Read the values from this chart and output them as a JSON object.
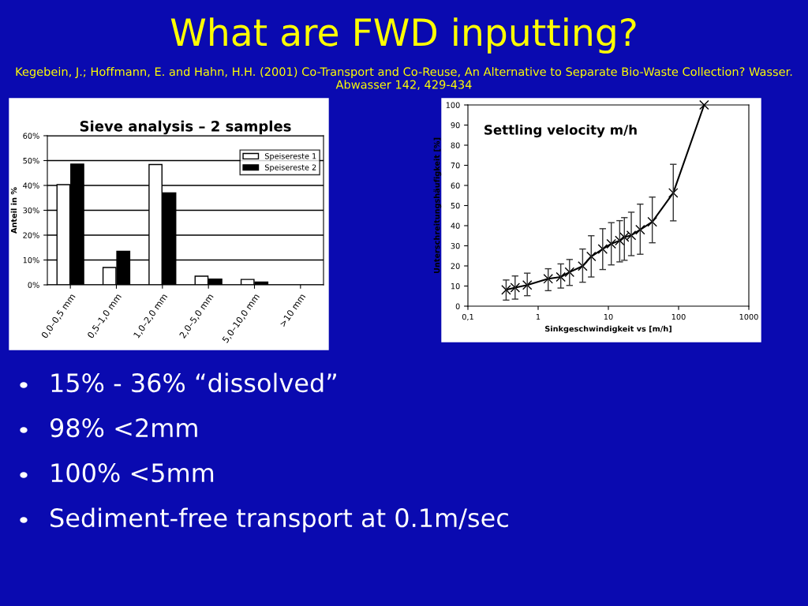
{
  "chart_data": [
    {
      "type": "other",
      "title": "What are FWD inputting?",
      "subtitle": "Kegebein, J.; Hoffmann, E. and Hahn, H.H. (2001) Co-Transport and Co-Reuse, An Alternative to Separate Bio-Waste Collection? Wasser. Abwasser 142, 429-434",
      "annotations": [
        "15% - 36% “dissolved”",
        "98% <2mm",
        "100% <5mm",
        "Sediment-free transport at 0.1m/sec"
      ]
    },
    {
      "type": "bar",
      "title": "Sieve analysis – 2 samples",
      "ylabel": "Anteil in %",
      "categories": [
        "0,0–0,5 mm",
        "0,5–1,0 mm",
        "1,0–2,0 mm",
        "2,0–5,0 mm",
        "5,0–10,0 mm",
        ">10 mm"
      ],
      "series": [
        {
          "name": "Speisereste 1",
          "color": "#ffffff",
          "values": [
            40.3,
            7.0,
            48.4,
            3.5,
            2.2,
            null
          ]
        },
        {
          "name": "Speisereste 2",
          "color": "#000000",
          "values": [
            48.6,
            13.5,
            37.0,
            2.3,
            1.1,
            null
          ]
        }
      ],
      "ylim": [
        0,
        60
      ],
      "yticks": [
        {
          "value": 0,
          "label": "0%"
        },
        {
          "value": 10,
          "label": "10%"
        },
        {
          "value": 20,
          "label": "20%"
        },
        {
          "value": 30,
          "label": "30%"
        },
        {
          "value": 40,
          "label": "40%"
        },
        {
          "value": 50,
          "label": "50%"
        },
        {
          "value": 60,
          "label": "60%"
        }
      ],
      "grid": "y",
      "legend": "top right"
    },
    {
      "type": "line",
      "title": "Settling velocity m/h",
      "xlabel": "Sinkgeschwindigkeit vs [m/h]",
      "ylabel": "Unterschreitungshäufigkeit [%]",
      "log": "x",
      "marker": "cross",
      "line_style": "solid",
      "series": [
        {
          "color": "#000000",
          "x": [
            0.35,
            0.47,
            0.7,
            1.39,
            2.1,
            2.8,
            4.3,
            5.7,
            8.3,
            11,
            14.5,
            16.9,
            21.2,
            28.4,
            42.2,
            84,
            231
          ],
          "values": [
            8.1,
            9.2,
            10.5,
            13.6,
            14.5,
            16.9,
            19.9,
            24.7,
            28.4,
            31,
            32.6,
            34.3,
            35.2,
            38,
            41.9,
            56.3,
            100
          ],
          "errors": [
            [
              3,
              13
            ],
            [
              3.5,
              15
            ],
            [
              5.2,
              16.4
            ],
            [
              7.7,
              18.6
            ],
            [
              9,
              21
            ],
            [
              10.3,
              23.2
            ],
            [
              11.9,
              28.4
            ],
            [
              14.5,
              35
            ],
            [
              18.2,
              38.5
            ],
            [
              20.5,
              41.5
            ],
            [
              22,
              42.5
            ],
            [
              22.8,
              44
            ],
            [
              25.1,
              46.7
            ],
            [
              25.8,
              50.7
            ],
            [
              31.5,
              54.2
            ],
            [
              42.4,
              70.5
            ],
            null
          ]
        }
      ],
      "xlim": [
        0.1,
        1000
      ],
      "xticks": [
        {
          "value": 0.1,
          "label": "0,1"
        },
        1,
        10,
        100,
        1000
      ],
      "ylim": [
        0,
        100
      ],
      "yticks": [
        0,
        10,
        20,
        30,
        40,
        50,
        60,
        70,
        80,
        90,
        100
      ],
      "grid": false
    }
  ]
}
